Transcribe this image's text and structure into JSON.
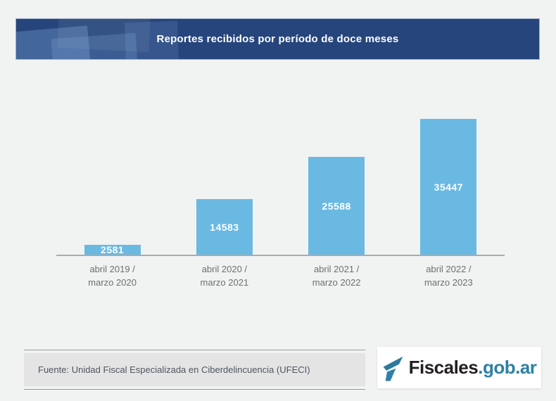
{
  "page": {
    "background": "#f1f2f2"
  },
  "header": {
    "title": "Reportes recibidos por período de doce meses",
    "background": "#26457c",
    "text_color": "#ffffff"
  },
  "chart_data": {
    "type": "bar",
    "title": "Reportes recibidos por período de doce meses",
    "categories": [
      "abril 2019 / marzo 2020",
      "abril 2020 / marzo 2021",
      "abril 2021 / marzo 2022",
      "abril 2022 / marzo 2023"
    ],
    "category_lines": [
      [
        "abril 2019 /",
        "marzo 2020"
      ],
      [
        "abril 2020 /",
        "marzo 2021"
      ],
      [
        "abril 2021 /",
        "marzo 2022"
      ],
      [
        "abril 2022 /",
        "marzo 2023"
      ]
    ],
    "values": [
      2581,
      14583,
      25588,
      35447
    ],
    "ylim": [
      0,
      35447
    ],
    "xlabel": "",
    "ylabel": "",
    "grid": false,
    "legend": "none",
    "value_labels": "inside-center",
    "bar_color": "#6ab9e2",
    "value_label_color": "#ffffff",
    "axis_line_color": "#ababab",
    "category_label_color": "#6e6e6e"
  },
  "footer": {
    "source_text": "Fuente: Unidad Fiscal Especializada en Ciberdelincuencia (UFECI)",
    "logo": {
      "brand": "Fiscales",
      "suffix": ".gob.ar",
      "brand_color": "#231f20",
      "suffix_color": "#2e81a5",
      "icon": "fiscales-flag-icon",
      "icon_color_dark": "#2b7aa0",
      "icon_color_light": "#2e81a8"
    }
  }
}
